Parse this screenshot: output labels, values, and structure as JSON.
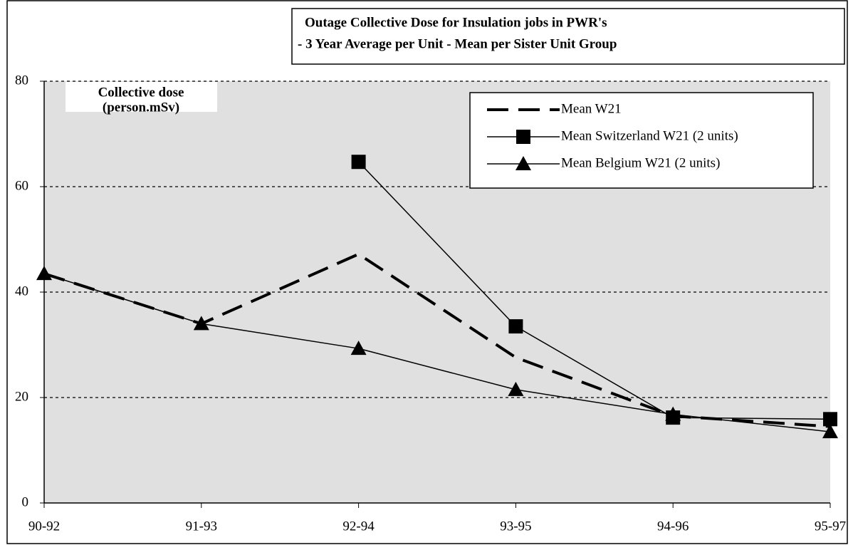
{
  "chart_data": {
    "type": "line",
    "title": "Outage Collective Dose for Insulation jobs in PWR's",
    "subtitle": "- 3 Year Average per Unit - Mean per Sister Unit Group",
    "ylabel": [
      "Collective dose",
      "(person.mSv)"
    ],
    "categories": [
      "90-92",
      "91-93",
      "92-94",
      "93-95",
      "94-96",
      "95-97"
    ],
    "series": [
      {
        "name": "Mean W21",
        "color": "#000000",
        "dash": true,
        "marker": null,
        "values": [
          43.5,
          34,
          47.2,
          27.6,
          16.5,
          14.5
        ]
      },
      {
        "name": "Mean Switzerland W21 (2 units)",
        "color": "#000000",
        "dash": false,
        "marker": "square",
        "values": [
          null,
          null,
          64.7,
          33.5,
          16.2,
          15.9
        ]
      },
      {
        "name": "Mean Belgium W21 (2 units)",
        "color": "#000000",
        "dash": false,
        "marker": "triangle",
        "values": [
          43.5,
          34,
          29.3,
          21.5,
          16.8,
          13.5
        ]
      }
    ],
    "ylim": [
      0,
      80
    ],
    "yticks": [
      0,
      20,
      40,
      60,
      80
    ],
    "grid": true,
    "legend": "upper right"
  }
}
